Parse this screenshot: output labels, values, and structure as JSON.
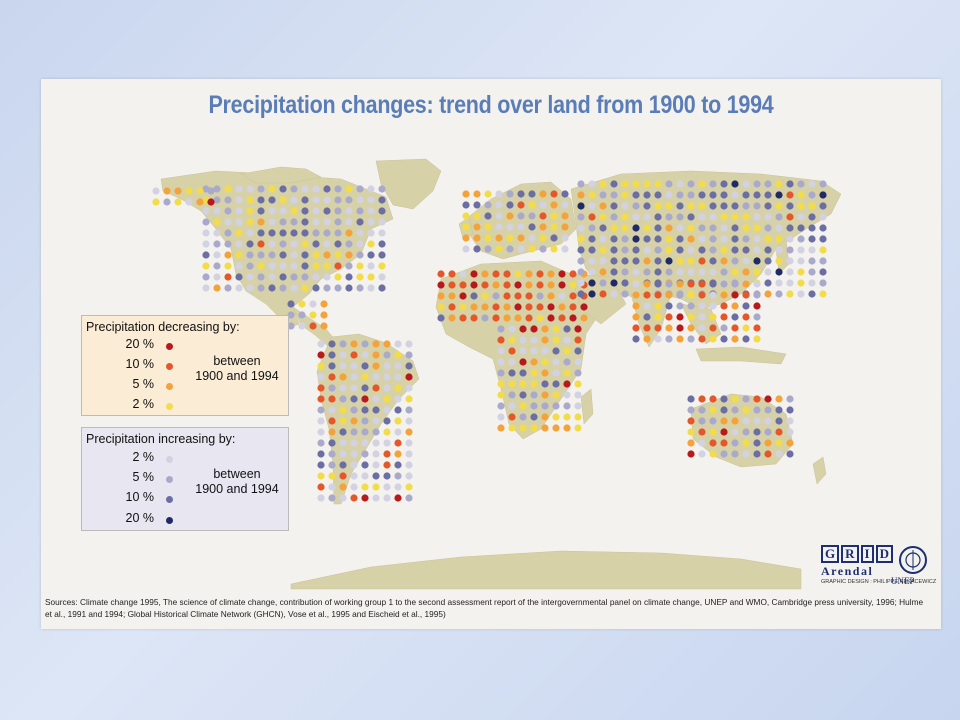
{
  "title": "Precipitation changes: trend over land from 1900 to 1994",
  "legend": {
    "decreasing": {
      "title": "Precipitation decreasing by:",
      "period": "between 1900 and 1994",
      "period_line1": "between",
      "period_line2": "1900 and 1994",
      "items": [
        {
          "label": "20 %",
          "color": "#b8191c"
        },
        {
          "label": "10 %",
          "color": "#e4572a"
        },
        {
          "label": "5 %",
          "color": "#f4a23a"
        },
        {
          "label": "2 %",
          "color": "#f3dc4a"
        }
      ]
    },
    "increasing": {
      "title": "Precipitation increasing by:",
      "period_line1": "between",
      "period_line2": "1900 and 1994",
      "items": [
        {
          "label": "2 %",
          "color": "#d2d2e2"
        },
        {
          "label": "5 %",
          "color": "#a9a9cc"
        },
        {
          "label": "10 %",
          "color": "#6b6ea3"
        },
        {
          "label": "20 %",
          "color": "#1f2a66"
        }
      ]
    }
  },
  "logo": {
    "grid_letters": [
      "G",
      "R",
      "I",
      "D"
    ],
    "subtitle": "Arendal",
    "org": "UNEP"
  },
  "credit": "GRAPHIC DESIGN : PHILIPPE REKACEWICZ",
  "sources": "Sources: Climate change 1995, The science of climate change, contribution of working group 1 to the second assessment report of the intergovernmental panel on climate change, UNEP and WMO, Cambridge press university, 1996; Hulme et al., 1991 and 1994; Global Historical Climate Network (GHCN), Vose et al., 1995 and Eischeid et al., 1995)",
  "colors": {
    "land": "#d7d1a8",
    "water": "#f4f2ee",
    "title": "#5a7db8"
  }
}
